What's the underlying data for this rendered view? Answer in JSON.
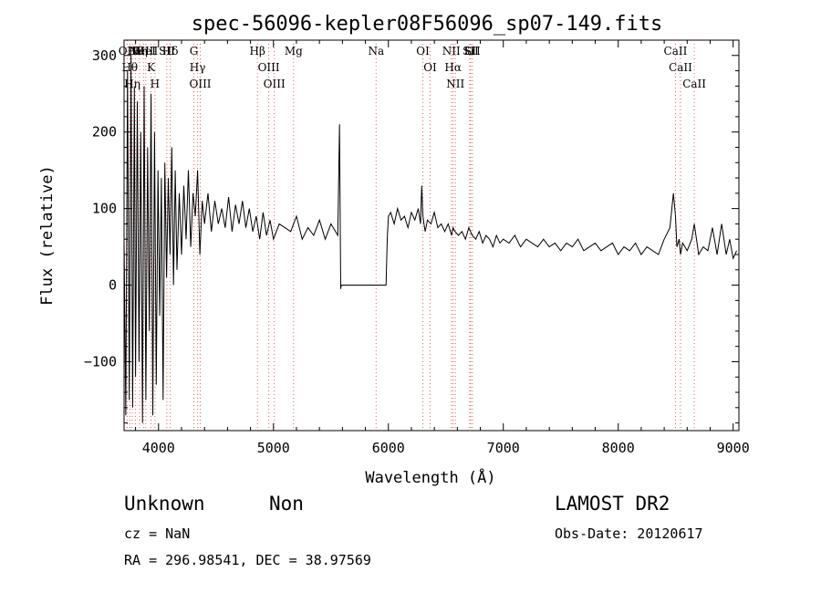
{
  "chart_data": {
    "type": "line",
    "title": "spec-56096-kepler08F56096_sp07-149.fits",
    "xlabel": "Wavelength (Å)",
    "ylabel": "Flux (relative)",
    "xlim": [
      3700,
      9050
    ],
    "ylim": [
      -190,
      320
    ],
    "xticks": [
      4000,
      5000,
      6000,
      7000,
      8000,
      9000
    ],
    "yticks": [
      -100,
      0,
      100,
      200,
      300
    ],
    "grid": false,
    "series": [
      {
        "x": [
          3700,
          3715,
          3730,
          3745,
          3760,
          3775,
          3790,
          3800,
          3815,
          3830,
          3845,
          3860,
          3875,
          3890,
          3905,
          3920,
          3935,
          3950,
          3965,
          3980,
          3995,
          4010,
          4025,
          4040,
          4055,
          4070,
          4085,
          4100,
          4115,
          4130,
          4145,
          4160,
          4180,
          4200,
          4220,
          4240,
          4260,
          4280,
          4300,
          4320,
          4340,
          4360,
          4380,
          4400,
          4430,
          4460,
          4490,
          4520,
          4550,
          4580,
          4610,
          4640,
          4670,
          4700,
          4730,
          4760,
          4790,
          4820,
          4850,
          4880,
          4910,
          4940,
          4970,
          5000,
          5050,
          5100,
          5150,
          5200,
          5250,
          5300,
          5350,
          5400,
          5450,
          5500,
          5540,
          5560,
          5575,
          5585,
          5590,
          5600,
          5700,
          5800,
          5900,
          5980,
          5990,
          6000,
          6020,
          6050,
          6080,
          6110,
          6140,
          6170,
          6200,
          6230,
          6260,
          6280,
          6290,
          6300,
          6310,
          6320,
          6340,
          6370,
          6400,
          6430,
          6460,
          6490,
          6520,
          6550,
          6563,
          6580,
          6610,
          6640,
          6670,
          6700,
          6730,
          6760,
          6790,
          6820,
          6850,
          6880,
          6910,
          6940,
          6970,
          7000,
          7050,
          7100,
          7150,
          7200,
          7250,
          7300,
          7350,
          7400,
          7450,
          7500,
          7550,
          7600,
          7650,
          7700,
          7750,
          7800,
          7850,
          7900,
          7950,
          8000,
          8050,
          8100,
          8150,
          8200,
          8250,
          8300,
          8350,
          8400,
          8450,
          8480,
          8498,
          8510,
          8530,
          8542,
          8560,
          8600,
          8640,
          8662,
          8700,
          8740,
          8780,
          8820,
          8860,
          8900,
          8940,
          8970,
          9000,
          9030
        ],
        "values": [
          60,
          -170,
          280,
          -150,
          300,
          -160,
          260,
          -120,
          240,
          -100,
          200,
          -180,
          260,
          -150,
          180,
          -60,
          250,
          -170,
          200,
          -130,
          150,
          -40,
          140,
          -150,
          160,
          10,
          140,
          40,
          180,
          0,
          150,
          20,
          120,
          40,
          130,
          60,
          150,
          50,
          120,
          90,
          150,
          40,
          110,
          80,
          120,
          70,
          110,
          80,
          100,
          75,
          115,
          70,
          105,
          80,
          110,
          75,
          100,
          70,
          90,
          60,
          95,
          65,
          85,
          60,
          80,
          75,
          70,
          90,
          60,
          75,
          65,
          85,
          60,
          80,
          70,
          65,
          210,
          -5,
          0,
          0,
          0,
          0,
          0,
          0,
          60,
          90,
          95,
          80,
          100,
          85,
          90,
          75,
          95,
          85,
          100,
          80,
          130,
          90,
          80,
          70,
          85,
          80,
          95,
          75,
          80,
          70,
          80,
          65,
          75,
          70,
          65,
          70,
          60,
          75,
          65,
          60,
          70,
          55,
          65,
          60,
          50,
          65,
          55,
          60,
          55,
          65,
          50,
          60,
          55,
          50,
          60,
          50,
          55,
          45,
          55,
          50,
          60,
          45,
          50,
          55,
          45,
          50,
          55,
          40,
          50,
          45,
          55,
          40,
          50,
          45,
          40,
          60,
          75,
          120,
          90,
          50,
          60,
          40,
          55,
          45,
          60,
          80,
          40,
          50,
          45,
          75,
          40,
          80,
          40,
          60,
          35,
          45
        ]
      }
    ],
    "annotations": [
      {
        "x": 3727,
        "label": "OII"
      },
      {
        "x": 3750,
        "label": "Hθ"
      },
      {
        "x": 3771,
        "label": "Hη"
      },
      {
        "x": 3798,
        "label": "Hθ"
      },
      {
        "x": 3835,
        "label": "Hη"
      },
      {
        "x": 3869,
        "label": "NeIII"
      },
      {
        "x": 3889,
        "label": "HeI"
      },
      {
        "x": 3934,
        "label": "K"
      },
      {
        "x": 3969,
        "label": "H"
      },
      {
        "x": 4072,
        "label": "SII"
      },
      {
        "x": 4102,
        "label": "Hδ"
      },
      {
        "x": 4308,
        "label": "G"
      },
      {
        "x": 4340,
        "label": "Hγ"
      },
      {
        "x": 4363,
        "label": "OIII"
      },
      {
        "x": 4861,
        "label": "Hβ"
      },
      {
        "x": 4959,
        "label": "OIII"
      },
      {
        "x": 5007,
        "label": "OIII"
      },
      {
        "x": 5175,
        "label": "Mg"
      },
      {
        "x": 5893,
        "label": "Na"
      },
      {
        "x": 6300,
        "label": "OI"
      },
      {
        "x": 6363,
        "label": "OI"
      },
      {
        "x": 6548,
        "label": "NII"
      },
      {
        "x": 6563,
        "label": "Hα"
      },
      {
        "x": 6583,
        "label": "NII"
      },
      {
        "x": 6707,
        "label": "Li"
      },
      {
        "x": 6716,
        "label": "SII"
      },
      {
        "x": 6731,
        "label": "SII"
      },
      {
        "x": 8498,
        "label": "CaII"
      },
      {
        "x": 8542,
        "label": "CaII"
      },
      {
        "x": 8662,
        "label": "CaII"
      }
    ]
  },
  "footer": {
    "class_label": "Unknown",
    "subclass_label": "Non",
    "survey": "LAMOST DR2",
    "cz_text": "cz = NaN",
    "obs_date_text": "Obs-Date: 20120617",
    "coords_text": "RA = 296.98541, DEC =  38.97569"
  }
}
